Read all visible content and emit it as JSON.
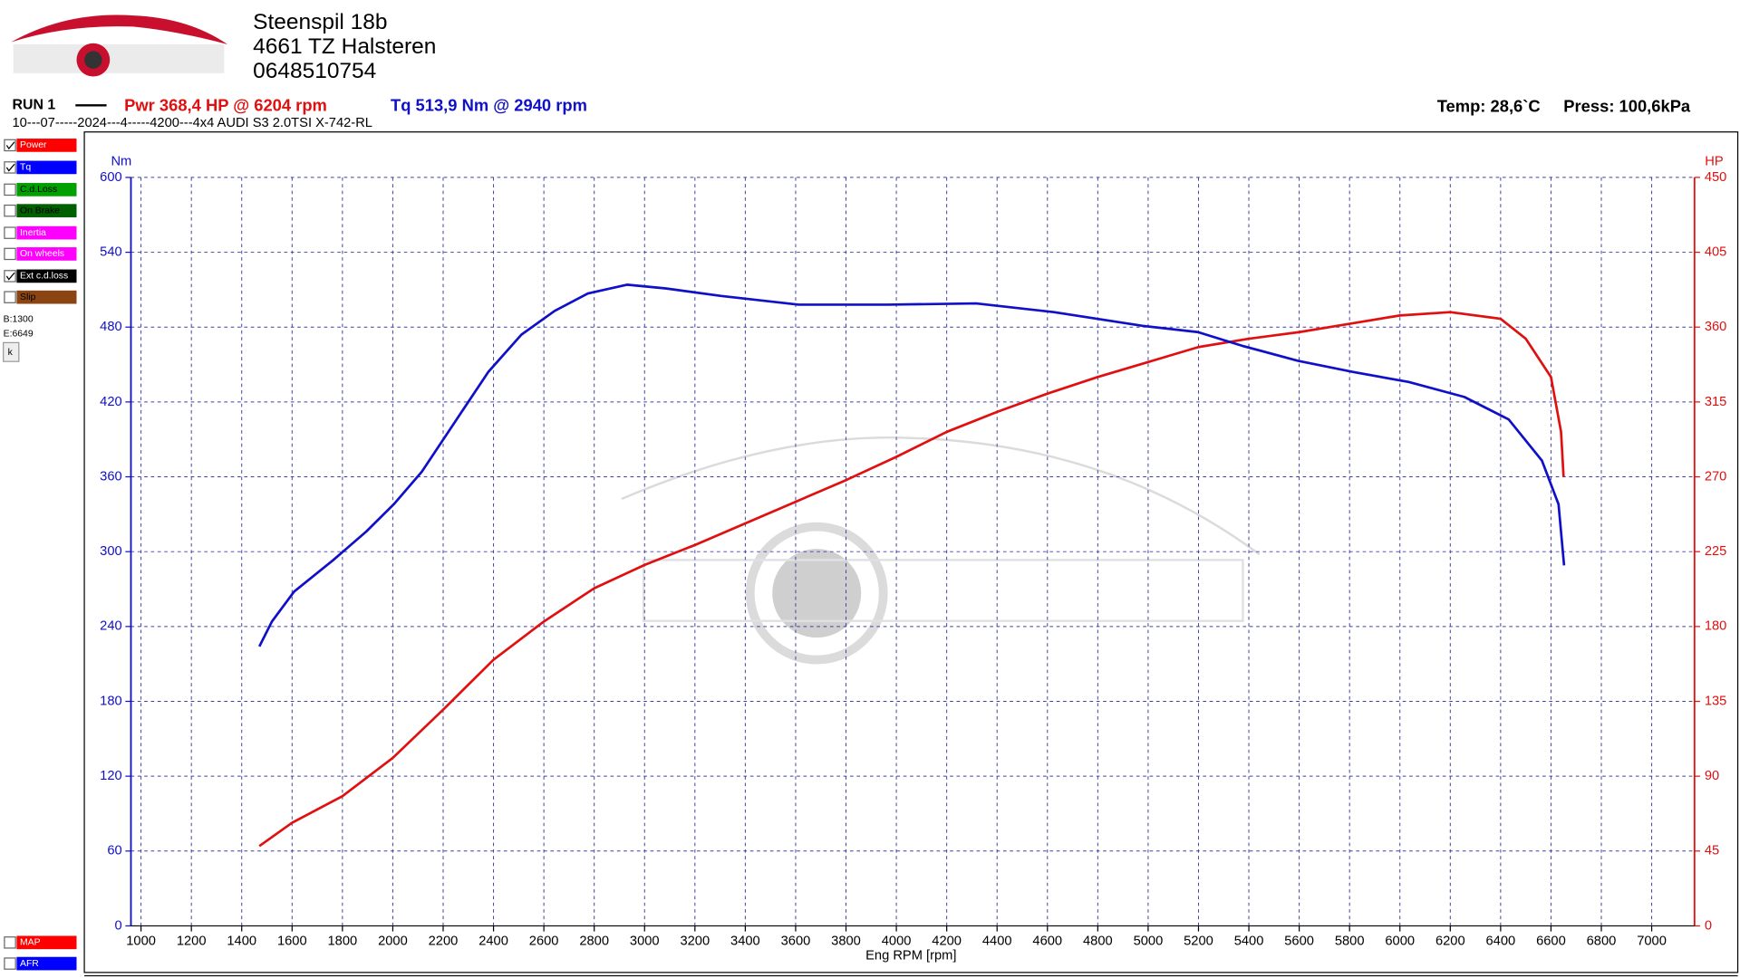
{
  "header": {
    "address": [
      "Steenspil 18b",
      "4661 TZ Halsteren",
      "0648510754"
    ],
    "run": "RUN 1",
    "power_summary": "Pwr  368,4 HP @ 6204 rpm",
    "torque_summary": "Tq 513,9 Nm @ 2940 rpm",
    "description": "10---07-----2024---4-----4200---4x4 AUDI S3 2.0TSI X-742-RL",
    "temp": "Temp: 28,6`C",
    "press": "Press: 100,6kPa"
  },
  "panel": {
    "options": [
      "C.d.Loss",
      "On Brake",
      "Inertia",
      "On wheels",
      "Ext c.d.loss",
      "Slip"
    ],
    "begin": "B:1300",
    "end": "E:6649",
    "button": "k",
    "extra": [
      "MAP",
      "AFR"
    ]
  },
  "chart_data": {
    "type": "line",
    "xlabel": "Eng RPM [rpm]",
    "ylabel": "Nm",
    "y2label": "HP",
    "grid": true,
    "xlim": [
      960,
      7170
    ],
    "xticks": [
      1000,
      1200,
      1400,
      1600,
      1800,
      2000,
      2200,
      2400,
      2600,
      2800,
      3000,
      3200,
      3400,
      3600,
      3800,
      4000,
      4200,
      4400,
      4600,
      4800,
      5000,
      5200,
      5400,
      5600,
      5800,
      6000,
      6200,
      6400,
      6600,
      6800,
      7000
    ],
    "ylim": [
      0,
      600
    ],
    "yticks": [
      0,
      60,
      120,
      180,
      240,
      300,
      360,
      420,
      480,
      540,
      600
    ],
    "y2lim": [
      0,
      450
    ],
    "y2ticks": [
      0,
      45,
      90,
      135,
      180,
      225,
      270,
      315,
      360,
      405,
      450
    ],
    "series": [
      {
        "name": "Power",
        "color": "#e01010",
        "axis": "y2",
        "x": [
          1470,
          1600,
          1800,
          2000,
          2200,
          2400,
          2600,
          2800,
          3000,
          3200,
          3400,
          3600,
          3800,
          4000,
          4200,
          4400,
          4600,
          4800,
          5000,
          5200,
          5400,
          5600,
          5800,
          6000,
          6200,
          6400,
          6500,
          6600,
          6640,
          6650
        ],
        "values": [
          48,
          62,
          78,
          101,
          130,
          160,
          183,
          203,
          217,
          229,
          242,
          255,
          268,
          282,
          297,
          309,
          320,
          330,
          339,
          348,
          353,
          357,
          362,
          367,
          369,
          365,
          353,
          330,
          297,
          270
        ]
      },
      {
        "name": "Tq",
        "color": "#1010c8",
        "axis": "y",
        "x": [
          1470,
          1520,
          1608,
          1762,
          1894,
          2004,
          2115,
          2247,
          2379,
          2511,
          2643,
          2775,
          2930,
          3084,
          3304,
          3612,
          3965,
          4317,
          4626,
          4978,
          5198,
          5374,
          5595,
          5815,
          6035,
          6256,
          6432,
          6564,
          6630,
          6652
        ],
        "values": [
          224,
          244,
          268,
          293,
          316,
          338,
          364,
          404,
          444,
          474,
          493,
          507,
          514,
          511,
          505,
          498,
          498,
          499,
          492,
          481,
          476,
          465,
          453,
          444,
          436,
          424,
          406,
          373,
          338,
          289
        ]
      }
    ]
  }
}
